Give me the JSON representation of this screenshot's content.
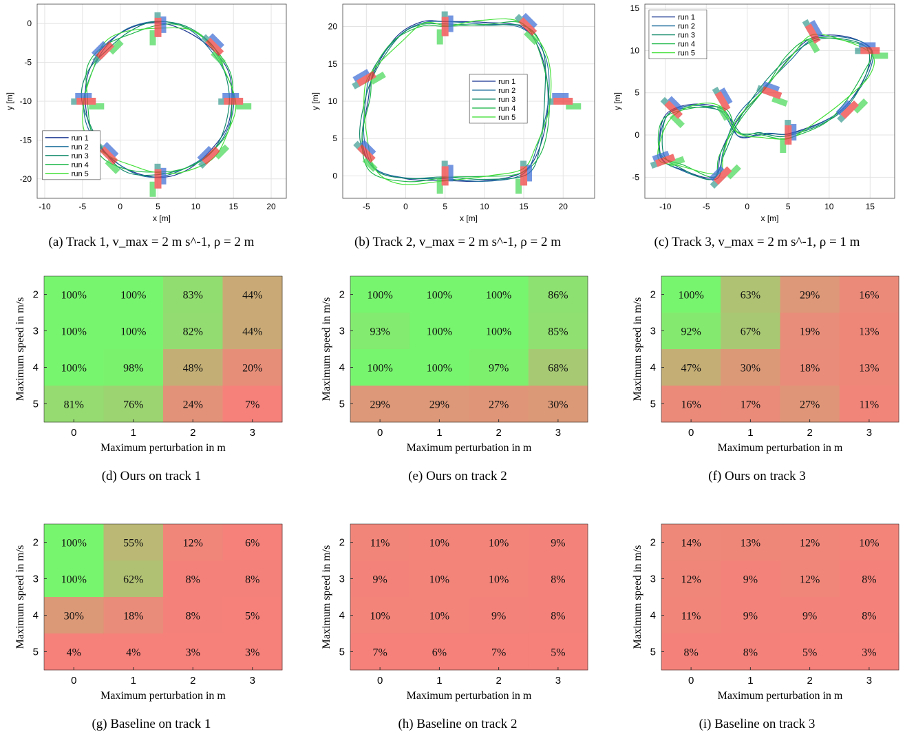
{
  "captions": {
    "a": "(a)  Track 1, v_max = 2 m s^-1, ρ = 2 m",
    "b": "(b)  Track 2, v_max = 2 m s^-1, ρ = 2 m",
    "c": "(c)  Track 3, v_max = 2 m s^-1, ρ = 1 m",
    "d": "(d)  Ours on track 1",
    "e": "(e)  Ours on track 2",
    "f": "(f)  Ours on track 3",
    "g": "(g)  Baseline on track 1",
    "h": "(h)  Baseline on track 2",
    "i": "(i)  Baseline on track 3"
  },
  "chart_data": [
    {
      "id": "a",
      "type": "line",
      "xlabel": "x [m]",
      "ylabel": "y [m]",
      "xlim": [
        -11,
        22
      ],
      "ylim": [
        -22.5,
        2.5
      ],
      "xticks": [
        -10,
        -5,
        0,
        5,
        10,
        15,
        20
      ],
      "yticks": [
        0,
        -5,
        -10,
        -15,
        -20
      ],
      "grid": true,
      "legend": "bottom-left",
      "series": [
        {
          "name": "run 1",
          "color": "#1f3a93"
        },
        {
          "name": "run 2",
          "color": "#1d6f9c"
        },
        {
          "name": "run 3",
          "color": "#138a6b"
        },
        {
          "name": "run 4",
          "color": "#1fb84a"
        },
        {
          "name": "run 5",
          "color": "#45e03a"
        }
      ]
    },
    {
      "id": "b",
      "type": "line",
      "xlabel": "x [m]",
      "ylabel": "y [m]",
      "xlim": [
        -8,
        24
      ],
      "ylim": [
        -3,
        23
      ],
      "xticks": [
        -5,
        0,
        5,
        10,
        15,
        20
      ],
      "yticks": [
        0,
        5,
        10,
        15,
        20
      ],
      "grid": true,
      "legend": "center-right",
      "series": [
        {
          "name": "run 1",
          "color": "#1f3a93"
        },
        {
          "name": "run 2",
          "color": "#1d6f9c"
        },
        {
          "name": "run 3",
          "color": "#138a6b"
        },
        {
          "name": "run 4",
          "color": "#1fb84a"
        },
        {
          "name": "run 5",
          "color": "#45e03a"
        }
      ]
    },
    {
      "id": "c",
      "type": "line",
      "xlabel": "x [m]",
      "ylabel": "y [m]",
      "xlim": [
        -12.5,
        18
      ],
      "ylim": [
        -7.5,
        15.5
      ],
      "xticks": [
        -10,
        -5,
        0,
        5,
        10,
        15
      ],
      "yticks": [
        -5,
        0,
        5,
        10,
        15
      ],
      "grid": true,
      "legend": "top-left",
      "series": [
        {
          "name": "run 1",
          "color": "#1f3a93"
        },
        {
          "name": "run 2",
          "color": "#1d6f9c"
        },
        {
          "name": "run 3",
          "color": "#138a6b"
        },
        {
          "name": "run 4",
          "color": "#1fb84a"
        },
        {
          "name": "run 5",
          "color": "#45e03a"
        }
      ]
    },
    {
      "id": "d",
      "type": "heatmap",
      "xlabel": "Maximum perturbation in m",
      "ylabel": "Maximum speed in m/s",
      "x": [
        0,
        1,
        2,
        3
      ],
      "y": [
        2,
        3,
        4,
        5
      ],
      "values": [
        [
          100,
          100,
          83,
          44
        ],
        [
          100,
          100,
          82,
          44
        ],
        [
          100,
          98,
          48,
          20
        ],
        [
          81,
          76,
          24,
          7
        ]
      ]
    },
    {
      "id": "e",
      "type": "heatmap",
      "xlabel": "Maximum perturbation in m",
      "ylabel": "Maximum speed in m/s",
      "x": [
        0,
        1,
        2,
        3
      ],
      "y": [
        2,
        3,
        4,
        5
      ],
      "values": [
        [
          100,
          100,
          100,
          86
        ],
        [
          93,
          100,
          100,
          85
        ],
        [
          100,
          100,
          97,
          68
        ],
        [
          29,
          29,
          27,
          30
        ]
      ]
    },
    {
      "id": "f",
      "type": "heatmap",
      "xlabel": "Maximum perturbation in m",
      "ylabel": "Maximum speed in m/s",
      "x": [
        0,
        1,
        2,
        3
      ],
      "y": [
        2,
        3,
        4,
        5
      ],
      "values": [
        [
          100,
          63,
          29,
          16
        ],
        [
          92,
          67,
          19,
          13
        ],
        [
          47,
          30,
          18,
          13
        ],
        [
          16,
          17,
          27,
          11
        ]
      ]
    },
    {
      "id": "g",
      "type": "heatmap",
      "xlabel": "Maximum perturbation in m",
      "ylabel": "Maximum speed in m/s",
      "x": [
        0,
        1,
        2,
        3
      ],
      "y": [
        2,
        3,
        4,
        5
      ],
      "values": [
        [
          100,
          55,
          12,
          6
        ],
        [
          100,
          62,
          8,
          8
        ],
        [
          30,
          18,
          8,
          5
        ],
        [
          4,
          4,
          3,
          3
        ]
      ]
    },
    {
      "id": "h",
      "type": "heatmap",
      "xlabel": "Maximum perturbation in m",
      "ylabel": "Maximum speed in m/s",
      "x": [
        0,
        1,
        2,
        3
      ],
      "y": [
        2,
        3,
        4,
        5
      ],
      "values": [
        [
          11,
          10,
          10,
          9
        ],
        [
          9,
          10,
          10,
          8
        ],
        [
          10,
          10,
          9,
          8
        ],
        [
          7,
          6,
          7,
          5
        ]
      ]
    },
    {
      "id": "i",
      "type": "heatmap",
      "xlabel": "Maximum perturbation in m",
      "ylabel": "Maximum speed in m/s",
      "x": [
        0,
        1,
        2,
        3
      ],
      "y": [
        2,
        3,
        4,
        5
      ],
      "values": [
        [
          14,
          13,
          12,
          10
        ],
        [
          12,
          9,
          12,
          8
        ],
        [
          11,
          9,
          9,
          8
        ],
        [
          8,
          8,
          5,
          3
        ]
      ]
    }
  ],
  "gate_colors": {
    "red": "#ee3b3b",
    "blue": "#3f6fd6",
    "teal": "#3f9e94",
    "green": "#4bd95a"
  }
}
